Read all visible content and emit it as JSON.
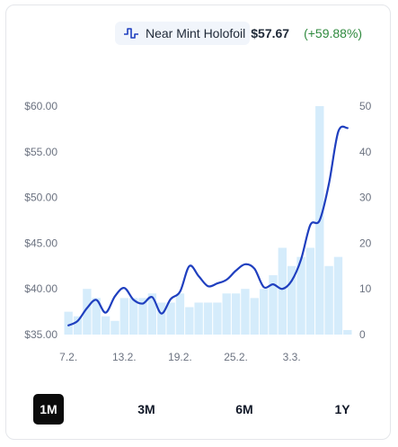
{
  "legend": {
    "icon": "price-line-icon",
    "name": "Near Mint Holofoil",
    "price": "$57.67",
    "change": "(+59.88%)",
    "change_color": "#2f8a3e"
  },
  "range_buttons": [
    {
      "label": "1M",
      "active": true
    },
    {
      "label": "3M",
      "active": false
    },
    {
      "label": "6M",
      "active": false
    },
    {
      "label": "1Y",
      "active": false
    }
  ],
  "colors": {
    "line": "#1f3fbf",
    "bars": "#d5ecfb",
    "active_button": "#0b0b0b"
  },
  "chart_data": {
    "type": "line+bar",
    "x_tick_labels": [
      "7.2.",
      "13.2.",
      "19.2.",
      "25.2.",
      "3.3."
    ],
    "left_axis": {
      "ticks": [
        "$35.00",
        "$40.00",
        "$45.00",
        "$50.00",
        "$55.00",
        "$60.00"
      ],
      "ylim": [
        35,
        60
      ]
    },
    "right_axis": {
      "ticks": [
        "0",
        "10",
        "20",
        "30",
        "40",
        "50"
      ],
      "ylim": [
        0,
        50
      ]
    },
    "series": [
      {
        "kind": "line",
        "axis": "left",
        "values": [
          36.0,
          36.5,
          37.9,
          38.8,
          37.4,
          39.2,
          40.1,
          38.8,
          38.4,
          39.1,
          37.3,
          38.9,
          39.7,
          42.5,
          41.4,
          40.3,
          40.6,
          41.0,
          42.0,
          42.7,
          42.2,
          40.2,
          40.5,
          40.0,
          40.9,
          43.2,
          47.0,
          47.5,
          51.5,
          57.2,
          57.6
        ]
      },
      {
        "kind": "bar",
        "axis": "right",
        "values": [
          5,
          4,
          10,
          8,
          4,
          3,
          8,
          8,
          8,
          9,
          7,
          7,
          9,
          6,
          7,
          7,
          7,
          9,
          9,
          10,
          8,
          10,
          13,
          19,
          15,
          17,
          19,
          50,
          15,
          17,
          1
        ]
      }
    ]
  }
}
